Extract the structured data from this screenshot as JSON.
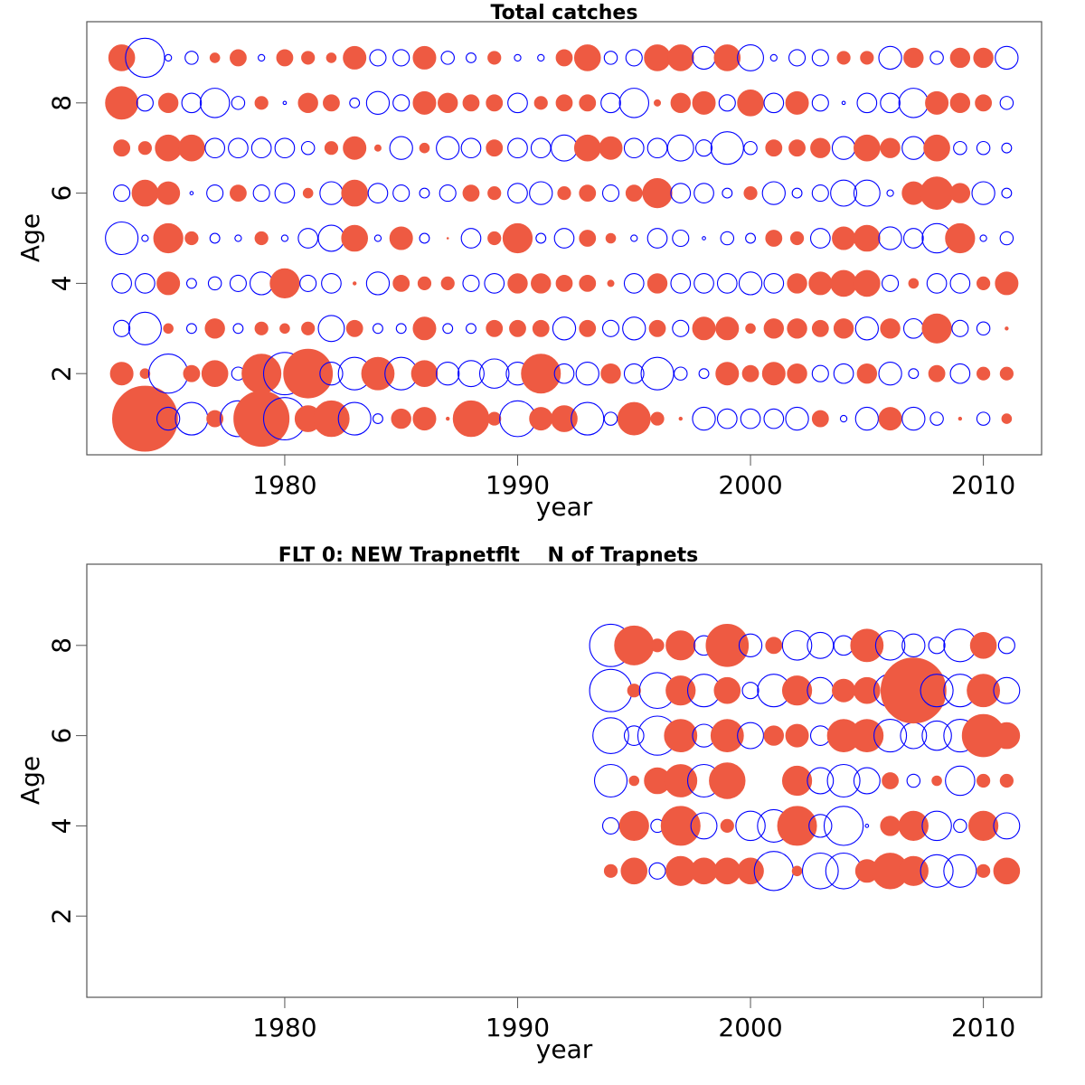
{
  "chart_data": [
    {
      "type": "scatter",
      "subtype": "bubble-residuals",
      "title": "Total catches",
      "xlabel": "year",
      "ylabel": "Age",
      "xlim": [
        1971.5,
        2012.5
      ],
      "ylim": [
        0.2,
        9.8
      ],
      "x_ticks": [
        1980,
        1990,
        2000,
        2010
      ],
      "y_ticks": [
        2,
        4,
        6,
        8
      ],
      "positive_color": "#ee5a42",
      "negative_color": "#0000ff",
      "ages": [
        1,
        2,
        3,
        4,
        5,
        6,
        7,
        8,
        9
      ],
      "years": [
        1973,
        1974,
        1975,
        1976,
        1977,
        1978,
        1979,
        1980,
        1981,
        1982,
        1983,
        1984,
        1985,
        1986,
        1987,
        1988,
        1989,
        1990,
        1991,
        1992,
        1993,
        1994,
        1995,
        1996,
        1997,
        1998,
        1999,
        2000,
        2001,
        2002,
        2003,
        2004,
        2005,
        2006,
        2007,
        2008,
        2009,
        2010,
        2011
      ],
      "residuals": {
        "1": [
          0.4,
          2.0,
          -0.7,
          -1.0,
          0.5,
          -1.1,
          1.7,
          -1.3,
          0.8,
          1.1,
          -1.0,
          -0.3,
          0.6,
          0.7,
          0.1,
          1.1,
          0.4,
          -1.1,
          0.7,
          0.8,
          -1.0,
          -0.4,
          1.0,
          0.4,
          0.1,
          -0.7,
          -0.6,
          -0.6,
          -0.6,
          -0.7,
          0.5,
          -0.2,
          -0.7,
          0.7,
          -0.7,
          -0.4,
          0.1,
          -0.4,
          0.3
        ],
        "2": [
          0.7,
          0.3,
          -1.2,
          0.5,
          0.8,
          -0.4,
          1.2,
          -1.3,
          1.5,
          -0.7,
          -1.0,
          1.0,
          -1.0,
          0.8,
          -0.7,
          -0.8,
          -0.9,
          -0.7,
          1.2,
          -0.6,
          -0.7,
          0.6,
          -0.6,
          -1.0,
          -0.4,
          -0.3,
          0.7,
          0.5,
          0.7,
          0.6,
          -0.5,
          -0.6,
          0.6,
          -0.7,
          -0.3,
          0.5,
          -0.6,
          0.4,
          0.4
        ],
        "3": [
          -0.5,
          -1.0,
          0.3,
          -0.3,
          0.6,
          -0.3,
          0.4,
          0.3,
          0.4,
          -0.8,
          0.5,
          -0.3,
          -0.3,
          0.7,
          -0.3,
          -0.3,
          0.5,
          0.5,
          0.5,
          -0.7,
          0.5,
          -0.5,
          -0.7,
          0.5,
          -0.5,
          0.7,
          0.7,
          0.3,
          0.6,
          0.6,
          0.5,
          0.6,
          -0.7,
          0.6,
          -0.6,
          0.9,
          -0.5,
          -0.4,
          0.1
        ],
        "4": [
          -0.6,
          -0.6,
          0.7,
          -0.3,
          -0.4,
          -0.5,
          -0.7,
          0.9,
          -0.5,
          -0.6,
          0.1,
          -0.7,
          0.5,
          0.4,
          0.4,
          -0.5,
          -0.6,
          0.6,
          0.6,
          0.5,
          0.5,
          0.2,
          -0.6,
          0.6,
          -0.6,
          -0.6,
          -0.6,
          -0.7,
          -0.6,
          0.6,
          0.7,
          0.8,
          0.8,
          -0.5,
          0.3,
          -0.6,
          -0.6,
          0.4,
          0.7
        ],
        "5": [
          -1.0,
          -0.2,
          0.9,
          0.4,
          -0.3,
          -0.2,
          0.4,
          -0.2,
          -0.6,
          -0.8,
          0.8,
          -0.2,
          0.7,
          -0.3,
          0.05,
          -0.6,
          0.4,
          0.9,
          -0.3,
          -0.6,
          0.5,
          0.3,
          -0.2,
          -0.6,
          -0.5,
          -0.1,
          -0.4,
          -0.3,
          0.5,
          0.4,
          -0.6,
          0.7,
          0.8,
          -0.7,
          -0.6,
          -0.9,
          0.9,
          -0.2,
          -0.4
        ],
        "6": [
          -0.5,
          0.8,
          0.7,
          -0.1,
          -0.5,
          0.5,
          -0.5,
          -0.6,
          0.3,
          -0.7,
          0.8,
          -0.6,
          -0.5,
          -0.3,
          -0.5,
          0.5,
          0.4,
          -0.6,
          -0.7,
          0.4,
          0.5,
          -0.5,
          0.5,
          0.9,
          -0.6,
          -0.6,
          -0.3,
          0.4,
          -0.7,
          -0.3,
          -0.5,
          -0.8,
          -0.8,
          -0.2,
          0.7,
          1.0,
          0.6,
          -0.7,
          -0.3
        ],
        "7": [
          0.5,
          0.4,
          0.8,
          0.8,
          -0.6,
          -0.6,
          -0.6,
          -0.6,
          -0.4,
          0.4,
          0.7,
          0.2,
          -0.7,
          0.3,
          -0.7,
          -0.6,
          0.5,
          -0.6,
          -0.6,
          -0.8,
          0.8,
          0.7,
          -0.6,
          -0.6,
          -0.8,
          -0.5,
          -1.0,
          -0.4,
          0.5,
          0.5,
          0.6,
          -0.7,
          0.8,
          0.6,
          -0.7,
          0.8,
          -0.4,
          -0.4,
          -0.3
        ],
        "8": [
          1.0,
          -0.5,
          0.6,
          -0.6,
          -0.9,
          -0.4,
          0.4,
          -0.1,
          0.6,
          0.5,
          -0.3,
          -0.7,
          -0.5,
          0.7,
          0.6,
          0.5,
          0.5,
          -0.6,
          0.4,
          0.5,
          0.5,
          -0.6,
          -0.9,
          0.2,
          0.6,
          0.7,
          -0.5,
          0.8,
          -0.6,
          0.7,
          -0.5,
          -0.1,
          -0.6,
          -0.6,
          -0.9,
          0.7,
          0.6,
          0.5,
          -0.4
        ],
        "9": [
          0.8,
          -1.2,
          -0.2,
          -0.4,
          0.3,
          0.5,
          -0.2,
          0.5,
          0.4,
          0.3,
          0.7,
          -0.5,
          -0.5,
          0.7,
          -0.4,
          -0.3,
          0.4,
          -0.2,
          -0.2,
          0.5,
          0.8,
          -0.4,
          -0.5,
          0.8,
          0.8,
          -0.7,
          0.8,
          -0.8,
          -0.2,
          -0.5,
          -0.5,
          0.4,
          0.4,
          -0.7,
          0.6,
          -0.4,
          0.6,
          0.6,
          -0.7
        ]
      }
    },
    {
      "type": "scatter",
      "subtype": "bubble-residuals",
      "title": "FLT 0: NEW Trapnetflt    N of Trapnets",
      "xlabel": "year",
      "ylabel": "Age",
      "xlim": [
        1971.5,
        2012.5
      ],
      "ylim": [
        0.2,
        9.8
      ],
      "x_ticks": [
        1980,
        1990,
        2000,
        2010
      ],
      "y_ticks": [
        2,
        4,
        6,
        8
      ],
      "positive_color": "#ee5a42",
      "negative_color": "#0000ff",
      "ages": [
        3,
        4,
        5,
        6,
        7,
        8
      ],
      "years": [
        1994,
        1995,
        1996,
        1997,
        1998,
        1999,
        2000,
        2001,
        2002,
        2003,
        2004,
        2005,
        2006,
        2007,
        2008,
        2009,
        2010,
        2011
      ],
      "residuals": {
        "3": [
          0.4,
          0.8,
          -0.5,
          0.9,
          0.8,
          0.8,
          0.8,
          -1.2,
          0.3,
          -1.1,
          -1.1,
          0.7,
          1.1,
          0.9,
          -1.0,
          -1.0,
          0.4,
          0.8
        ],
        "4": [
          -0.5,
          0.9,
          -0.4,
          1.2,
          -0.8,
          0.4,
          -0.9,
          -1.0,
          1.2,
          -0.7,
          -1.2,
          -0.1,
          0.6,
          0.9,
          -0.9,
          -0.4,
          0.9,
          -0.8
        ],
        "5": [
          -1.0,
          0.3,
          0.8,
          1.0,
          -1.0,
          1.1,
          0.0,
          0.0,
          0.9,
          -0.8,
          -1.0,
          -0.8,
          0.5,
          -0.4,
          0.3,
          -0.9,
          0.4,
          0.4
        ],
        "6": [
          -1.1,
          -0.6,
          -1.2,
          1.0,
          -0.7,
          1.0,
          -0.8,
          0.6,
          0.7,
          -0.6,
          1.0,
          1.0,
          -1.0,
          -0.8,
          -0.9,
          -1.0,
          1.3,
          0.8
        ],
        "7": [
          -1.3,
          0.4,
          -1.1,
          0.9,
          -1.0,
          0.8,
          -0.5,
          -1.0,
          0.9,
          -0.8,
          0.7,
          0.8,
          -1.0,
          2.0,
          -1.0,
          -1.0,
          1.0,
          -0.8
        ],
        "8": [
          -1.3,
          1.2,
          0.4,
          0.9,
          -0.6,
          1.3,
          -0.7,
          0.5,
          -0.9,
          -0.8,
          -0.6,
          1.0,
          -0.9,
          -0.7,
          -0.5,
          -1.0,
          0.8,
          -0.5
        ]
      }
    }
  ]
}
